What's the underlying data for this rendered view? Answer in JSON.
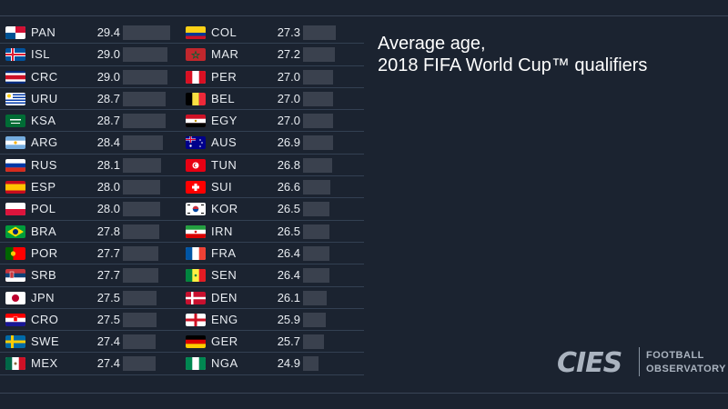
{
  "chart_data": {
    "type": "bar",
    "title_line1": "Average age,",
    "title_line2": "2018 FIFA World Cup™ qualifiers",
    "xlim": [
      24,
      30
    ],
    "left": [
      {
        "code": "PAN",
        "value": "29.4",
        "flag": "pan"
      },
      {
        "code": "ISL",
        "value": "29.0",
        "flag": "isl"
      },
      {
        "code": "CRC",
        "value": "29.0",
        "flag": "crc"
      },
      {
        "code": "URU",
        "value": "28.7",
        "flag": "uru"
      },
      {
        "code": "KSA",
        "value": "28.7",
        "flag": "ksa"
      },
      {
        "code": "ARG",
        "value": "28.4",
        "flag": "arg"
      },
      {
        "code": "RUS",
        "value": "28.1",
        "flag": "rus"
      },
      {
        "code": "ESP",
        "value": "28.0",
        "flag": "esp"
      },
      {
        "code": "POL",
        "value": "28.0",
        "flag": "pol"
      },
      {
        "code": "BRA",
        "value": "27.8",
        "flag": "bra"
      },
      {
        "code": "POR",
        "value": "27.7",
        "flag": "por"
      },
      {
        "code": "SRB",
        "value": "27.7",
        "flag": "srb"
      },
      {
        "code": "JPN",
        "value": "27.5",
        "flag": "jpn"
      },
      {
        "code": "CRO",
        "value": "27.5",
        "flag": "cro"
      },
      {
        "code": "SWE",
        "value": "27.4",
        "flag": "swe"
      },
      {
        "code": "MEX",
        "value": "27.4",
        "flag": "mex"
      }
    ],
    "right": [
      {
        "code": "COL",
        "value": "27.3",
        "flag": "col"
      },
      {
        "code": "MAR",
        "value": "27.2",
        "flag": "mar"
      },
      {
        "code": "PER",
        "value": "27.0",
        "flag": "per"
      },
      {
        "code": "BEL",
        "value": "27.0",
        "flag": "bel"
      },
      {
        "code": "EGY",
        "value": "27.0",
        "flag": "egy"
      },
      {
        "code": "AUS",
        "value": "26.9",
        "flag": "aus"
      },
      {
        "code": "TUN",
        "value": "26.8",
        "flag": "tun"
      },
      {
        "code": "SUI",
        "value": "26.6",
        "flag": "sui"
      },
      {
        "code": "KOR",
        "value": "26.5",
        "flag": "kor"
      },
      {
        "code": "IRN",
        "value": "26.5",
        "flag": "irn"
      },
      {
        "code": "FRA",
        "value": "26.4",
        "flag": "fra"
      },
      {
        "code": "SEN",
        "value": "26.4",
        "flag": "sen"
      },
      {
        "code": "DEN",
        "value": "26.1",
        "flag": "den"
      },
      {
        "code": "ENG",
        "value": "25.9",
        "flag": "eng"
      },
      {
        "code": "GER",
        "value": "25.7",
        "flag": "ger"
      },
      {
        "code": "NGA",
        "value": "24.9",
        "flag": "nga"
      }
    ]
  },
  "logo": {
    "name": "CIES",
    "line1": "FOOTBALL",
    "line2": "OBSERVATORY"
  }
}
